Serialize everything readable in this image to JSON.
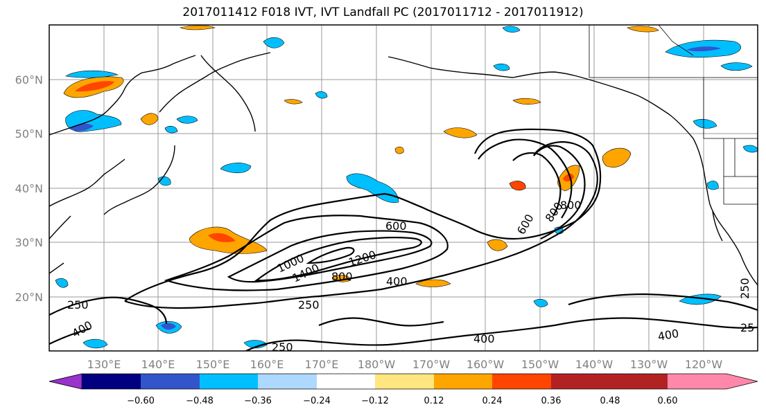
{
  "title": "2017011412 F018 IVT, IVT Landfall PC (2017011712 - 2017011912)",
  "axes": {
    "lon_labels": [
      "130°E",
      "140°E",
      "150°E",
      "160°E",
      "170°E",
      "180°W",
      "170°W",
      "160°W",
      "150°W",
      "140°W",
      "130°W",
      "120°W"
    ],
    "lat_labels": [
      "60°N",
      "50°N",
      "40°N",
      "30°N",
      "20°N"
    ]
  },
  "colorbar": {
    "colors": [
      "#9933cc",
      "#000080",
      "#3355cc",
      "#00bfff",
      "#add8ff",
      "#ffffff",
      "#ffe680",
      "#ffa500",
      "#ff4500",
      "#b22222",
      "#ff88aa"
    ],
    "tick_labels": [
      "−0.60",
      "−0.48",
      "−0.36",
      "−0.24",
      "−0.12",
      "0.12",
      "0.24",
      "0.36",
      "0.48",
      "0.60"
    ]
  },
  "contour_labels": [
    "250",
    "400",
    "600",
    "800",
    "1000",
    "1200",
    "1400",
    "800",
    "400",
    "250",
    "600",
    "800",
    "400",
    "250",
    "400",
    "25",
    "250"
  ]
}
